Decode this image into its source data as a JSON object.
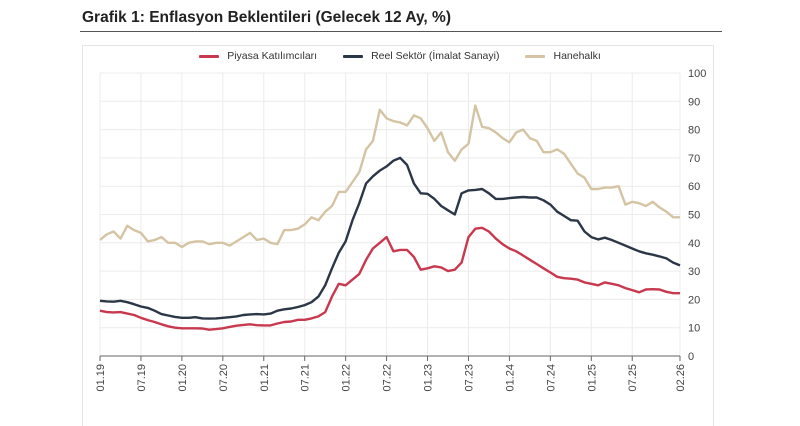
{
  "chart_data": {
    "type": "line",
    "title": "Grafik 1: Enflasyon Beklentileri (Gelecek 12 Ay, %)",
    "xlabel": "",
    "ylabel": "",
    "ylim": [
      0,
      100
    ],
    "yticks": [
      0,
      10,
      20,
      30,
      40,
      50,
      60,
      70,
      80,
      90,
      100
    ],
    "xtick_labels": [
      "01.19",
      "07.19",
      "01.20",
      "07.20",
      "01.21",
      "07.21",
      "01.22",
      "07.22",
      "01.23",
      "07.23",
      "01.24",
      "07.24",
      "01.25",
      "07.25",
      "02.26"
    ],
    "xtick_index": [
      0,
      6,
      12,
      18,
      24,
      30,
      36,
      42,
      48,
      54,
      60,
      66,
      72,
      78,
      85
    ],
    "x_start": "01.19",
    "x_end": "02.26",
    "frequency": "monthly",
    "grid": true,
    "legend_position": "top-center",
    "series": [
      {
        "name": "Piyasa Katılımcıları",
        "color": "#c8384e",
        "values": [
          16,
          15.5,
          15.4,
          15.5,
          15,
          14.5,
          13.5,
          12.7,
          12,
          11.2,
          10.5,
          10,
          9.8,
          9.8,
          9.8,
          9.7,
          9.3,
          9.5,
          9.8,
          10.3,
          10.7,
          11,
          11.2,
          10.9,
          10.8,
          10.8,
          11.5,
          12,
          12.2,
          12.8,
          12.8,
          13.3,
          14,
          15.5,
          21,
          25.5,
          25,
          27,
          29,
          34,
          38,
          40,
          42,
          37,
          37.5,
          37.5,
          35,
          30.5,
          31,
          31.7,
          31.3,
          30,
          30.5,
          33,
          42,
          45,
          45.3,
          44,
          41.5,
          39.5,
          38,
          37,
          35.5,
          34,
          32.5,
          31,
          29.5,
          28,
          27.5,
          27.3,
          27,
          26,
          25.5,
          25,
          26,
          25.5,
          25,
          24,
          23.3,
          22.5,
          23.5,
          23.6,
          23.5,
          22.7,
          22.2,
          22.2
        ]
      },
      {
        "name": "Reel Sektör (İmalat Sanayi)",
        "color": "#2b3646",
        "values": [
          19.5,
          19.3,
          19.2,
          19.5,
          19,
          18.3,
          17.5,
          17,
          16,
          14.8,
          14.3,
          13.8,
          13.5,
          13.5,
          13.7,
          13.3,
          13.2,
          13.3,
          13.5,
          13.7,
          14,
          14.5,
          14.7,
          14.8,
          14.7,
          15,
          16,
          16.5,
          16.8,
          17.3,
          18,
          19,
          21,
          25,
          31,
          36.5,
          40.5,
          48,
          54,
          61,
          63.5,
          65.5,
          67,
          69,
          70,
          67.5,
          61,
          57.5,
          57.3,
          55.5,
          53,
          51.5,
          50,
          57.5,
          58.5,
          58.7,
          59,
          57.5,
          55.5,
          55.5,
          55.8,
          56,
          56.2,
          56,
          56,
          55,
          53.5,
          51,
          49.5,
          48,
          47.8,
          44,
          42,
          41.2,
          41.8,
          41,
          40,
          39,
          38,
          37,
          36.3,
          35.8,
          35.2,
          34.5,
          33,
          32
        ]
      },
      {
        "name": "Hanehalkı",
        "color": "#d4c4a4",
        "values": [
          41,
          43,
          44,
          41.5,
          46,
          44.5,
          43.5,
          40.5,
          41,
          42,
          40,
          40,
          38.5,
          40,
          40.5,
          40.5,
          39.5,
          40,
          40,
          39,
          40.5,
          42,
          43.5,
          41,
          41.5,
          40,
          39.5,
          44.5,
          44.5,
          45,
          46.5,
          49,
          48,
          51,
          53,
          58,
          58,
          61.5,
          65,
          73,
          76,
          87,
          84,
          83,
          82.5,
          81.5,
          85,
          84,
          80.5,
          76,
          79,
          72,
          69,
          73,
          75,
          88.5,
          81,
          80.5,
          79,
          77,
          75.5,
          79,
          80,
          77,
          76,
          72,
          72,
          73,
          71.5,
          68,
          64.5,
          63,
          59,
          59,
          59.5,
          59.5,
          60,
          53.5,
          54.5,
          54,
          53,
          54.5,
          52.5,
          51,
          49,
          49
        ]
      }
    ]
  }
}
